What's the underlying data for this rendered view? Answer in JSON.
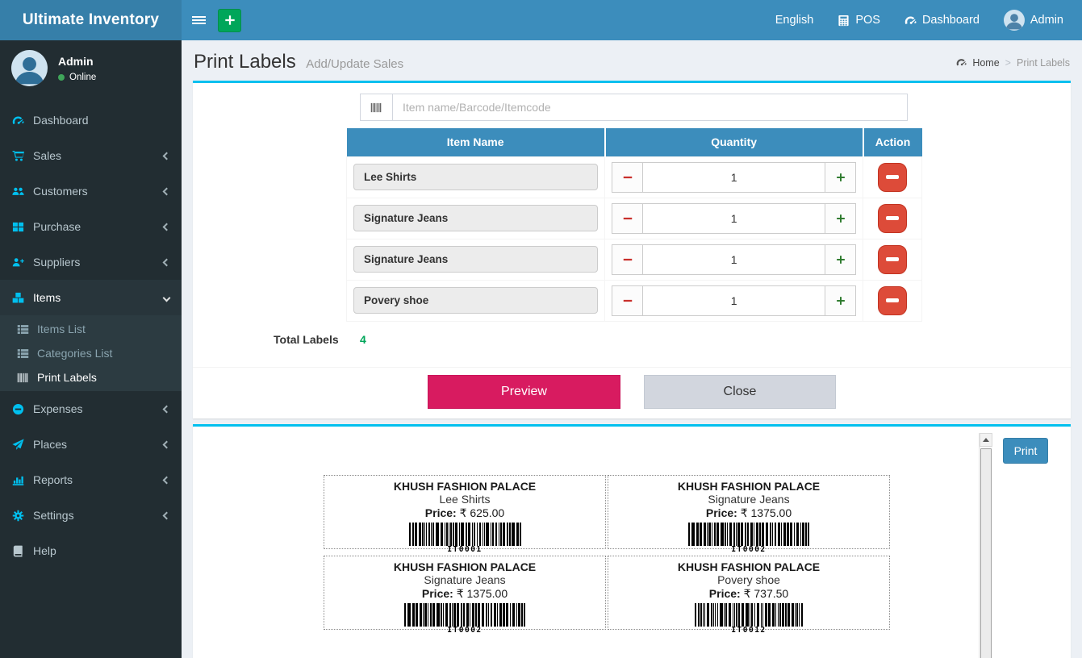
{
  "app_title": "Ultimate Inventory",
  "navbar": {
    "language": "English",
    "pos": "POS",
    "dashboard": "Dashboard",
    "user": "Admin"
  },
  "sidebar": {
    "user": {
      "name": "Admin",
      "status": "Online"
    },
    "menu": [
      {
        "label": "Dashboard",
        "icon": "tachometer-icon"
      },
      {
        "label": "Sales",
        "icon": "cart-icon"
      },
      {
        "label": "Customers",
        "icon": "users-icon"
      },
      {
        "label": "Purchase",
        "icon": "grid-icon"
      },
      {
        "label": "Suppliers",
        "icon": "user-plus-icon"
      },
      {
        "label": "Items",
        "icon": "cubes-icon"
      },
      {
        "label": "Expenses",
        "icon": "minus-circle-icon"
      },
      {
        "label": "Places",
        "icon": "paper-plane-icon"
      },
      {
        "label": "Reports",
        "icon": "bar-chart-icon"
      },
      {
        "label": "Settings",
        "icon": "gears-icon"
      },
      {
        "label": "Help",
        "icon": "book-icon"
      }
    ],
    "submenu": [
      {
        "label": "Items List",
        "icon": "list-icon"
      },
      {
        "label": "Categories List",
        "icon": "list-icon"
      },
      {
        "label": "Print Labels",
        "icon": "barcode-icon"
      }
    ]
  },
  "page": {
    "title": "Print Labels",
    "subtitle": "Add/Update Sales",
    "breadcrumb": {
      "home": "Home",
      "current": "Print Labels"
    }
  },
  "search": {
    "placeholder": "Item name/Barcode/Itemcode"
  },
  "table": {
    "headers": [
      "Item Name",
      "Quantity",
      "Action"
    ],
    "rows": [
      {
        "name": "Lee Shirts",
        "qty": "1"
      },
      {
        "name": "Signature Jeans",
        "qty": "1"
      },
      {
        "name": "Signature Jeans",
        "qty": "1"
      },
      {
        "name": "Povery shoe",
        "qty": "1"
      }
    ],
    "total_label": "Total Labels",
    "total_value": "4"
  },
  "buttons": {
    "preview": "Preview",
    "close": "Close",
    "print": "Print"
  },
  "labels": [
    {
      "company": "KHUSH FASHION PALACE",
      "item": "Lee Shirts",
      "price_label": "Price:",
      "price": "₹ 625.00",
      "code": "IT0001"
    },
    {
      "company": "KHUSH FASHION PALACE",
      "item": "Signature Jeans",
      "price_label": "Price:",
      "price": "₹ 1375.00",
      "code": "IT0002"
    },
    {
      "company": "KHUSH FASHION PALACE",
      "item": "Signature Jeans",
      "price_label": "Price:",
      "price": "₹ 1375.00",
      "code": "IT0002"
    },
    {
      "company": "KHUSH FASHION PALACE",
      "item": "Povery shoe",
      "price_label": "Price:",
      "price": "₹ 737.50",
      "code": "IT0012"
    }
  ],
  "colors": {
    "accent_cyan": "#00c0ef",
    "header_blue": "#3c8dbc",
    "logo_blue": "#367fa9",
    "sidebar_dark": "#222d32",
    "green": "#00a65a",
    "red": "#dd4b39",
    "pink": "#d81b60"
  }
}
